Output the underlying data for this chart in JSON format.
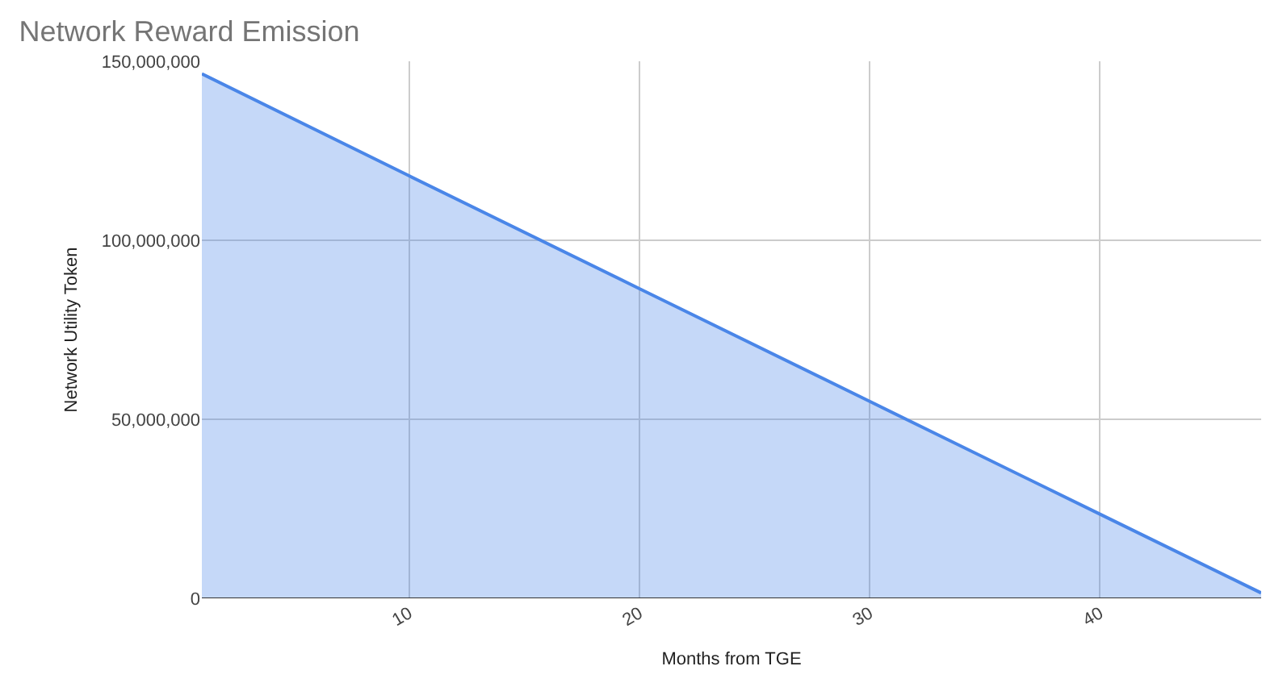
{
  "chart_data": {
    "type": "area",
    "title": "Network Reward Emission",
    "xlabel": "Months from TGE",
    "ylabel": "Network Utility Token",
    "x": [
      1,
      10,
      20,
      30,
      40,
      47
    ],
    "series": [
      {
        "color": "#4a86e8",
        "values": [
          146500000,
          118000000,
          86500000,
          55000000,
          23500000,
          1500000
        ]
      }
    ],
    "xlim": [
      1,
      47
    ],
    "xticks": [
      10,
      20,
      30,
      40
    ],
    "ylim": [
      0,
      150000000
    ],
    "yticks": [
      {
        "value": 0,
        "label": "0"
      },
      {
        "value": 50000000,
        "label": "50,000,000"
      },
      {
        "value": 100000000,
        "label": "100,000,000"
      },
      {
        "value": 150000000,
        "label": "150,000,000"
      }
    ],
    "grid": true
  }
}
